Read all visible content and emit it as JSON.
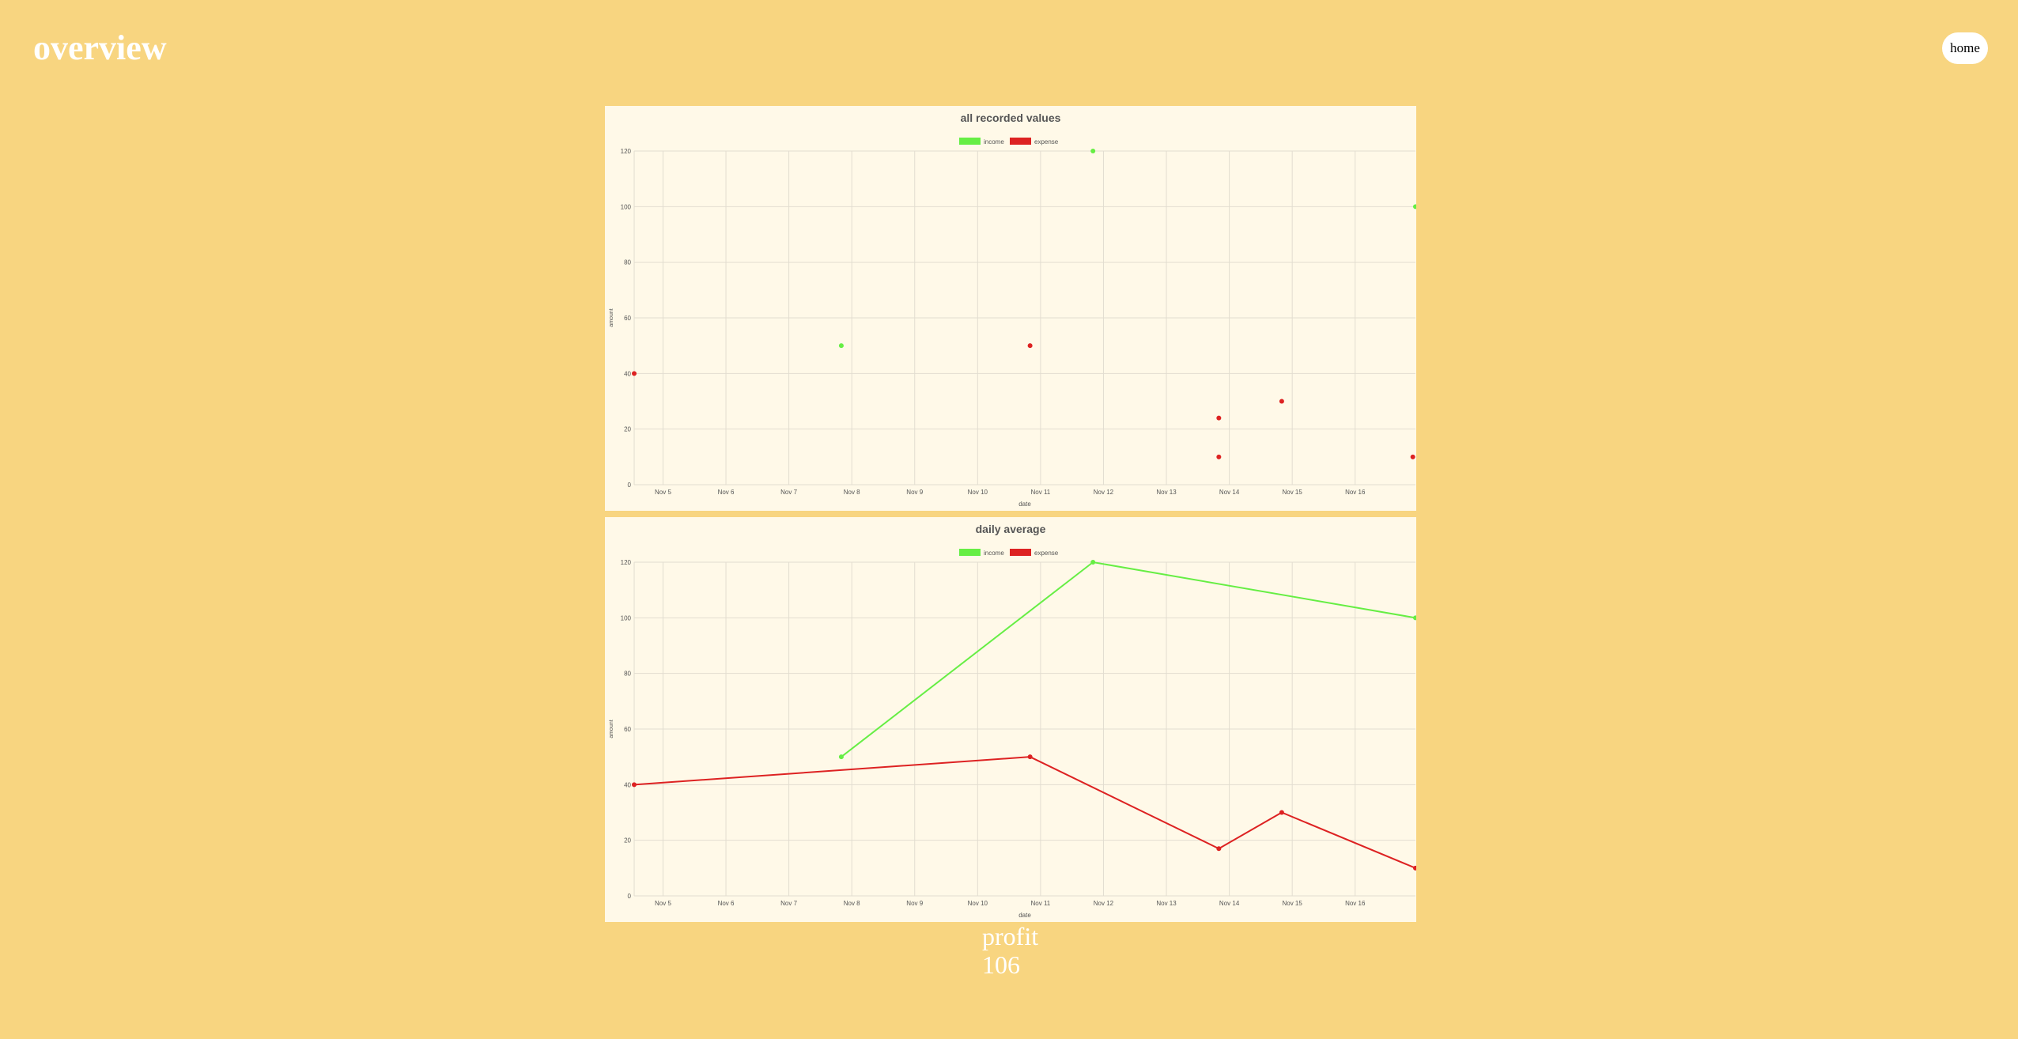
{
  "header": {
    "title": "overview",
    "home_label": "home"
  },
  "colors": {
    "background": "#f8d580",
    "card": "#fff9e8",
    "income": "#66ee44",
    "expense": "#dd2222",
    "grid": "#e2ddd0",
    "text": "#555555"
  },
  "chart_data": [
    {
      "type": "scatter",
      "title": "all recorded values",
      "xlabel": "date",
      "ylabel": "amount",
      "ylim": [
        0,
        120
      ],
      "yticks": [
        0,
        20,
        40,
        60,
        80,
        100,
        120
      ],
      "xlim": [
        "Nov 4 13:00",
        "Nov 16 23:00"
      ],
      "xticks": [
        "Nov 5",
        "Nov 6",
        "Nov 7",
        "Nov 8",
        "Nov 9",
        "Nov 10",
        "Nov 11",
        "Nov 12",
        "Nov 13",
        "Nov 14",
        "Nov 15",
        "Nov 16"
      ],
      "grid": true,
      "legend": "top-center",
      "series": [
        {
          "name": "income",
          "color": "#66ee44",
          "points": [
            {
              "x": "Nov 7 20:00",
              "y": 50
            },
            {
              "x": "Nov 11 20:00",
              "y": 120
            },
            {
              "x": "Nov 16 23:00",
              "y": 100
            }
          ]
        },
        {
          "name": "expense",
          "color": "#dd2222",
          "points": [
            {
              "x": "Nov 4 13:00",
              "y": 40
            },
            {
              "x": "Nov 10 20:00",
              "y": 50
            },
            {
              "x": "Nov 13 20:00",
              "y": 24
            },
            {
              "x": "Nov 13 20:00",
              "y": 10
            },
            {
              "x": "Nov 14 20:00",
              "y": 30
            },
            {
              "x": "Nov 16 22:00",
              "y": 10
            }
          ]
        }
      ]
    },
    {
      "type": "line",
      "title": "daily average",
      "xlabel": "date",
      "ylabel": "amount",
      "ylim": [
        0,
        120
      ],
      "yticks": [
        0,
        20,
        40,
        60,
        80,
        100,
        120
      ],
      "xlim": [
        "Nov 4 13:00",
        "Nov 16 23:00"
      ],
      "xticks": [
        "Nov 5",
        "Nov 6",
        "Nov 7",
        "Nov 8",
        "Nov 9",
        "Nov 10",
        "Nov 11",
        "Nov 12",
        "Nov 13",
        "Nov 14",
        "Nov 15",
        "Nov 16"
      ],
      "grid": true,
      "legend": "top-center",
      "series": [
        {
          "name": "income",
          "color": "#66ee44",
          "points": [
            {
              "x": "Nov 7 20:00",
              "y": 50
            },
            {
              "x": "Nov 11 20:00",
              "y": 120
            },
            {
              "x": "Nov 16 23:00",
              "y": 100
            }
          ]
        },
        {
          "name": "expense",
          "color": "#dd2222",
          "points": [
            {
              "x": "Nov 4 13:00",
              "y": 40
            },
            {
              "x": "Nov 10 20:00",
              "y": 50
            },
            {
              "x": "Nov 13 20:00",
              "y": 17
            },
            {
              "x": "Nov 14 20:00",
              "y": 30
            },
            {
              "x": "Nov 16 23:00",
              "y": 10
            }
          ]
        }
      ]
    }
  ],
  "profit": {
    "label": "profit",
    "value": "106"
  }
}
